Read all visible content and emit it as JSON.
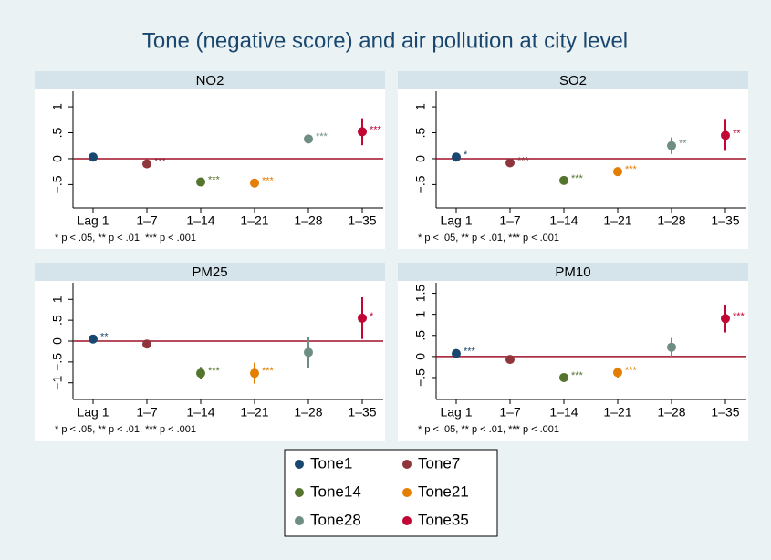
{
  "title": "Tone (negative score) and air pollution at city level",
  "legend": [
    {
      "name": "Tone1",
      "color": "#1a476f"
    },
    {
      "name": "Tone7",
      "color": "#90353b"
    },
    {
      "name": "Tone14",
      "color": "#55752f"
    },
    {
      "name": "Tone21",
      "color": "#e37e00"
    },
    {
      "name": "Tone28",
      "color": "#6e8e84"
    },
    {
      "name": "Tone35",
      "color": "#c10534"
    }
  ],
  "chart_data": [
    {
      "type": "dot",
      "title": "NO2",
      "note": "* p < .05, ** p < .01, *** p < .001",
      "categories": [
        "Lag 1",
        "1–7",
        "1–14",
        "1–21",
        "1–28",
        "1–35"
      ],
      "values": [
        0.03,
        -0.1,
        -0.45,
        -0.47,
        0.38,
        0.52
      ],
      "errors": [
        0.04,
        0.04,
        0.05,
        0.05,
        0.08,
        0.26
      ],
      "labels": [
        null,
        "***",
        "***",
        "***",
        "***",
        "***"
      ],
      "colors": [
        "#1a476f",
        "#90353b",
        "#55752f",
        "#e37e00",
        "#6e8e84",
        "#c10534"
      ],
      "refline": 0,
      "refline_color": "#a0102a",
      "ylim": [
        -0.95,
        1.3
      ],
      "yticks": [
        {
          "value": -0.5,
          "label": "−.5"
        },
        0,
        {
          "value": 0.5,
          "label": ".5"
        },
        1
      ]
    },
    {
      "type": "dot",
      "title": "SO2",
      "note": "* p < .05, ** p < .01, *** p < .001",
      "categories": [
        "Lag 1",
        "1–7",
        "1–14",
        "1–21",
        "1–28",
        "1–35"
      ],
      "values": [
        0.03,
        -0.08,
        -0.42,
        -0.25,
        0.25,
        0.45
      ],
      "errors": [
        0.04,
        0.04,
        0.08,
        0.08,
        0.16,
        0.3
      ],
      "labels": [
        "*",
        "***",
        "***",
        "***",
        "**",
        "**"
      ],
      "colors": [
        "#1a476f",
        "#90353b",
        "#55752f",
        "#e37e00",
        "#6e8e84",
        "#c10534"
      ],
      "refline": 0,
      "refline_color": "#a0102a",
      "ylim": [
        -0.95,
        1.3
      ],
      "yticks": [
        {
          "value": -0.5,
          "label": "−.5"
        },
        0,
        {
          "value": 0.5,
          "label": ".5"
        },
        1
      ]
    },
    {
      "type": "dot",
      "title": "PM25",
      "note": "* p < .05, ** p < .01, *** p < .001",
      "categories": [
        "Lag 1",
        "1–7",
        "1–14",
        "1–21",
        "1–28",
        "1–35"
      ],
      "values": [
        0.05,
        -0.07,
        -0.77,
        -0.77,
        -0.27,
        0.55
      ],
      "errors": [
        0.06,
        0.06,
        0.15,
        0.25,
        0.37,
        0.5
      ],
      "labels": [
        "**",
        null,
        "***",
        "***",
        null,
        "*"
      ],
      "colors": [
        "#1a476f",
        "#90353b",
        "#55752f",
        "#e37e00",
        "#6e8e84",
        "#c10534"
      ],
      "refline": 0,
      "refline_color": "#a0102a",
      "ylim": [
        -1.4,
        1.4
      ],
      "yticks": [
        {
          "value": -1,
          "label": "−1"
        },
        {
          "value": -0.5,
          "label": "−.5"
        },
        0,
        {
          "value": 0.5,
          "label": ".5"
        },
        1
      ]
    },
    {
      "type": "dot",
      "title": "PM10",
      "note": "* p < .05, ** p < .01, *** p < .001",
      "categories": [
        "Lag 1",
        "1–7",
        "1–14",
        "1–21",
        "1–28",
        "1–35"
      ],
      "values": [
        0.07,
        -0.07,
        -0.5,
        -0.38,
        0.22,
        0.9
      ],
      "errors": [
        0.05,
        0.05,
        0.1,
        0.12,
        0.22,
        0.33
      ],
      "labels": [
        "***",
        null,
        "***",
        "***",
        null,
        "***"
      ],
      "colors": [
        "#1a476f",
        "#90353b",
        "#55752f",
        "#e37e00",
        "#6e8e84",
        "#c10534"
      ],
      "refline": 0,
      "refline_color": "#a0102a",
      "ylim": [
        -1.02,
        1.75
      ],
      "yticks": [
        {
          "value": -0.5,
          "label": "−.5"
        },
        0,
        {
          "value": 0.5,
          "label": ".5"
        },
        1,
        1.5
      ]
    }
  ]
}
